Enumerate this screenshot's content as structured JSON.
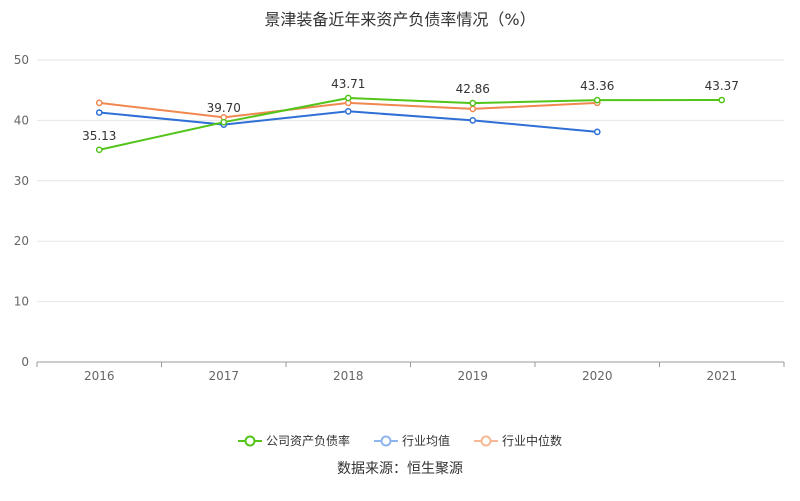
{
  "chart_data": {
    "type": "line",
    "title": "景津装备近年来资产负债率情况（%）",
    "categories": [
      "2016",
      "2017",
      "2018",
      "2019",
      "2020",
      "2021"
    ],
    "ylim": [
      0,
      50
    ],
    "yticks": [
      0,
      10,
      20,
      30,
      40,
      50
    ],
    "grid": true,
    "legend_position": "bottom",
    "series": [
      {
        "name": "公司资产负债率",
        "color": "#52c41a",
        "values": [
          35.13,
          39.7,
          43.71,
          42.86,
          43.36,
          43.37
        ],
        "labels": [
          "35.13",
          "39.70",
          "43.71",
          "42.86",
          "43.36",
          "43.37"
        ]
      },
      {
        "name": "行业均值",
        "color": "#2f6fd6",
        "values": [
          41.3,
          39.3,
          41.5,
          40.0,
          38.1,
          null
        ]
      },
      {
        "name": "行业中位数",
        "color": "#f0884f",
        "values": [
          42.9,
          40.5,
          42.9,
          41.9,
          42.9,
          null
        ]
      }
    ]
  },
  "legend": {
    "company": "公司资产负债率",
    "industry_mean": "行业均值",
    "industry_median": "行业中位数"
  },
  "source": "数据来源：恒生聚源"
}
